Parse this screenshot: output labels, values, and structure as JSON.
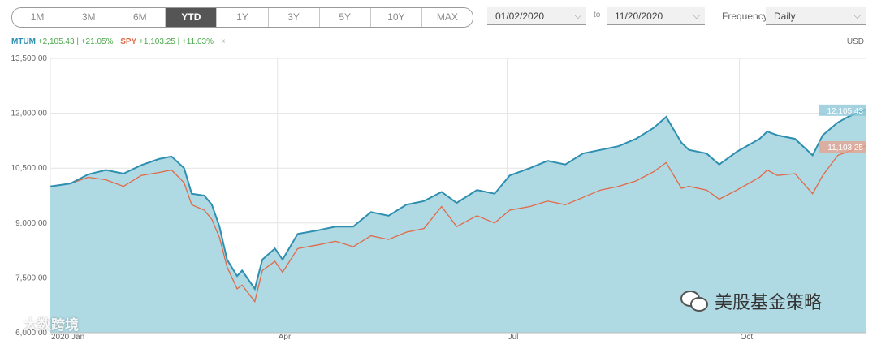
{
  "toolbar": {
    "range_tabs": [
      "1M",
      "3M",
      "6M",
      "YTD",
      "1Y",
      "3Y",
      "5Y",
      "10Y",
      "MAX"
    ],
    "active_tab": "YTD",
    "from_date": "01/02/2020",
    "to_label": "to",
    "to_date": "11/20/2020",
    "frequency_label": "Frequency",
    "frequency_value": "Daily"
  },
  "legend": {
    "mtum_name": "MTUM",
    "mtum_change": "+2,105.43 | +21.05%",
    "spy_name": "SPY",
    "spy_change": "+1,103.25 | +11.03%",
    "currency": "USD"
  },
  "watermarks": {
    "left": "大数跨境",
    "right": "美股基金策略"
  },
  "colors": {
    "mtum_line": "#2e8fb0",
    "mtum_fill": "#afd9e3",
    "spy_line": "#e06a48",
    "active_tab": "#555555"
  },
  "chart_data": {
    "type": "area",
    "xlabel": "",
    "ylabel": "",
    "ylim": [
      6000,
      13500
    ],
    "yticks": [
      "13,500.00",
      "12,000.00",
      "10,500.00",
      "9,000.00",
      "7,500.00",
      "6,000.00"
    ],
    "ytick_values": [
      13500,
      12000,
      10500,
      9000,
      7500,
      6000
    ],
    "xticks": [
      "2020 Jan",
      "Apr",
      "Jul",
      "Oct"
    ],
    "xtick_dates": [
      "2020-01-02",
      "2020-04-01",
      "2020-07-01",
      "2020-10-01"
    ],
    "x_range": [
      "2020-01-02",
      "2020-11-20"
    ],
    "grid": true,
    "series": [
      {
        "name": "MTUM",
        "end_label": "12,105.43",
        "points": [
          [
            "2020-01-02",
            10000
          ],
          [
            "2020-01-10",
            10080
          ],
          [
            "2020-01-17",
            10330
          ],
          [
            "2020-01-24",
            10450
          ],
          [
            "2020-01-31",
            10350
          ],
          [
            "2020-02-07",
            10580
          ],
          [
            "2020-02-14",
            10750
          ],
          [
            "2020-02-19",
            10820
          ],
          [
            "2020-02-24",
            10500
          ],
          [
            "2020-02-27",
            9800
          ],
          [
            "2020-03-03",
            9750
          ],
          [
            "2020-03-06",
            9500
          ],
          [
            "2020-03-09",
            8900
          ],
          [
            "2020-03-12",
            8000
          ],
          [
            "2020-03-16",
            7550
          ],
          [
            "2020-03-18",
            7700
          ],
          [
            "2020-03-23",
            7200
          ],
          [
            "2020-03-26",
            8000
          ],
          [
            "2020-03-31",
            8300
          ],
          [
            "2020-04-03",
            8000
          ],
          [
            "2020-04-09",
            8700
          ],
          [
            "2020-04-17",
            8800
          ],
          [
            "2020-04-24",
            8900
          ],
          [
            "2020-05-01",
            8900
          ],
          [
            "2020-05-08",
            9300
          ],
          [
            "2020-05-15",
            9200
          ],
          [
            "2020-05-22",
            9500
          ],
          [
            "2020-05-29",
            9600
          ],
          [
            "2020-06-05",
            9850
          ],
          [
            "2020-06-11",
            9550
          ],
          [
            "2020-06-19",
            9900
          ],
          [
            "2020-06-26",
            9800
          ],
          [
            "2020-07-02",
            10300
          ],
          [
            "2020-07-10",
            10500
          ],
          [
            "2020-07-17",
            10700
          ],
          [
            "2020-07-24",
            10600
          ],
          [
            "2020-07-31",
            10900
          ],
          [
            "2020-08-07",
            11000
          ],
          [
            "2020-08-14",
            11100
          ],
          [
            "2020-08-21",
            11300
          ],
          [
            "2020-08-28",
            11600
          ],
          [
            "2020-09-02",
            11900
          ],
          [
            "2020-09-08",
            11200
          ],
          [
            "2020-09-11",
            11000
          ],
          [
            "2020-09-18",
            10900
          ],
          [
            "2020-09-23",
            10600
          ],
          [
            "2020-09-30",
            10950
          ],
          [
            "2020-10-09",
            11300
          ],
          [
            "2020-10-12",
            11500
          ],
          [
            "2020-10-16",
            11400
          ],
          [
            "2020-10-23",
            11300
          ],
          [
            "2020-10-30",
            10850
          ],
          [
            "2020-11-03",
            11400
          ],
          [
            "2020-11-09",
            11750
          ],
          [
            "2020-11-13",
            11900
          ],
          [
            "2020-11-20",
            12105.43
          ]
        ]
      },
      {
        "name": "SPY",
        "end_label": "11,103.25",
        "points": [
          [
            "2020-01-02",
            10000
          ],
          [
            "2020-01-10",
            10080
          ],
          [
            "2020-01-17",
            10250
          ],
          [
            "2020-01-24",
            10180
          ],
          [
            "2020-01-31",
            10000
          ],
          [
            "2020-02-07",
            10300
          ],
          [
            "2020-02-14",
            10380
          ],
          [
            "2020-02-19",
            10450
          ],
          [
            "2020-02-24",
            10100
          ],
          [
            "2020-02-27",
            9500
          ],
          [
            "2020-03-03",
            9350
          ],
          [
            "2020-03-06",
            9100
          ],
          [
            "2020-03-09",
            8600
          ],
          [
            "2020-03-12",
            7800
          ],
          [
            "2020-03-16",
            7200
          ],
          [
            "2020-03-18",
            7300
          ],
          [
            "2020-03-23",
            6850
          ],
          [
            "2020-03-26",
            7700
          ],
          [
            "2020-03-31",
            7950
          ],
          [
            "2020-04-03",
            7650
          ],
          [
            "2020-04-09",
            8300
          ],
          [
            "2020-04-17",
            8400
          ],
          [
            "2020-04-24",
            8500
          ],
          [
            "2020-05-01",
            8350
          ],
          [
            "2020-05-08",
            8650
          ],
          [
            "2020-05-15",
            8550
          ],
          [
            "2020-05-22",
            8750
          ],
          [
            "2020-05-29",
            8850
          ],
          [
            "2020-06-05",
            9450
          ],
          [
            "2020-06-11",
            8900
          ],
          [
            "2020-06-19",
            9200
          ],
          [
            "2020-06-26",
            9000
          ],
          [
            "2020-07-02",
            9350
          ],
          [
            "2020-07-10",
            9450
          ],
          [
            "2020-07-17",
            9600
          ],
          [
            "2020-07-24",
            9500
          ],
          [
            "2020-07-31",
            9700
          ],
          [
            "2020-08-07",
            9900
          ],
          [
            "2020-08-14",
            10000
          ],
          [
            "2020-08-21",
            10150
          ],
          [
            "2020-08-28",
            10400
          ],
          [
            "2020-09-02",
            10650
          ],
          [
            "2020-09-08",
            9950
          ],
          [
            "2020-09-11",
            10000
          ],
          [
            "2020-09-18",
            9900
          ],
          [
            "2020-09-23",
            9650
          ],
          [
            "2020-09-30",
            9900
          ],
          [
            "2020-10-09",
            10250
          ],
          [
            "2020-10-12",
            10450
          ],
          [
            "2020-10-16",
            10300
          ],
          [
            "2020-10-23",
            10350
          ],
          [
            "2020-10-30",
            9800
          ],
          [
            "2020-11-03",
            10300
          ],
          [
            "2020-11-09",
            10850
          ],
          [
            "2020-11-13",
            10950
          ],
          [
            "2020-11-20",
            11103.25
          ]
        ]
      }
    ]
  }
}
